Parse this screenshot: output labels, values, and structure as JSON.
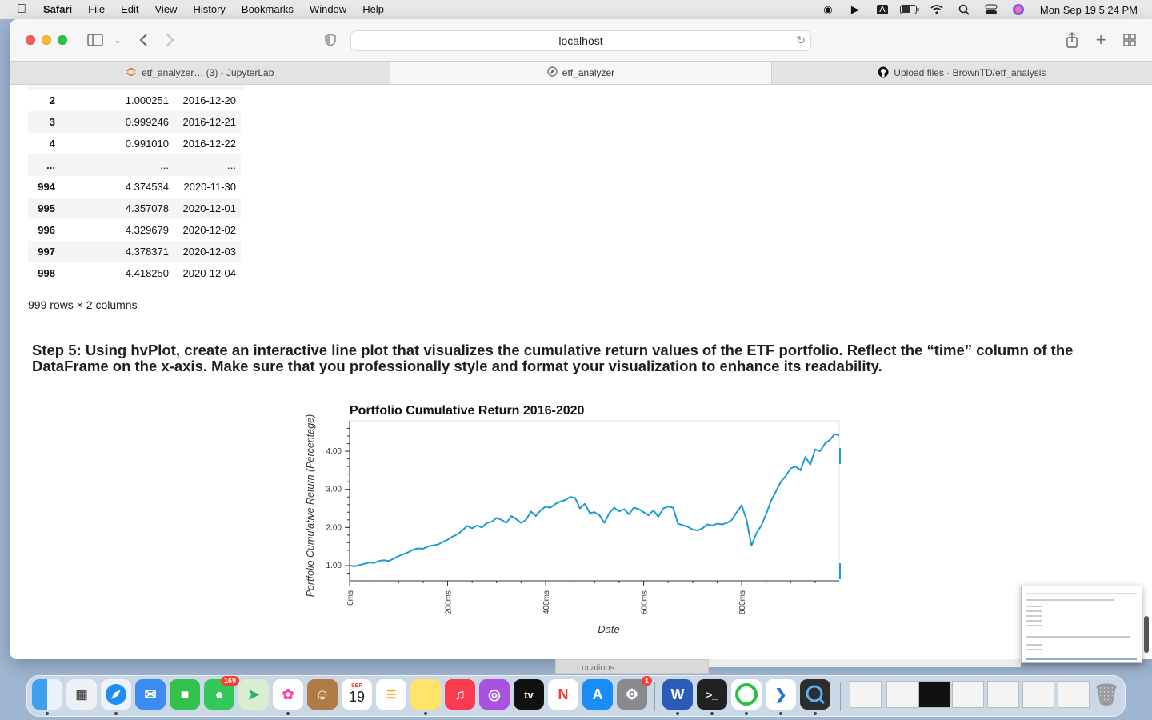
{
  "menubar": {
    "app_name": "Safari",
    "items": [
      "File",
      "Edit",
      "View",
      "History",
      "Bookmarks",
      "Window",
      "Help"
    ],
    "clock": "Mon Sep 19  5:24 PM"
  },
  "browser": {
    "address": "localhost",
    "tabs": [
      {
        "label": "etf_analyzer… (3) - JupyterLab",
        "icon": "jupyter-icon"
      },
      {
        "label": "etf_analyzer",
        "icon": "compass-icon"
      },
      {
        "label": "Upload files · BrownTD/etf_analysis",
        "icon": "github-icon"
      }
    ]
  },
  "dataframe": {
    "rows": [
      {
        "index": "2",
        "value": "1.000251",
        "date": "2016-12-20"
      },
      {
        "index": "3",
        "value": "0.999246",
        "date": "2016-12-21"
      },
      {
        "index": "4",
        "value": "0.991010",
        "date": "2016-12-22"
      },
      {
        "index": "...",
        "value": "...",
        "date": "..."
      },
      {
        "index": "994",
        "value": "4.374534",
        "date": "2020-11-30"
      },
      {
        "index": "995",
        "value": "4.357078",
        "date": "2020-12-01"
      },
      {
        "index": "996",
        "value": "4.329679",
        "date": "2020-12-02"
      },
      {
        "index": "997",
        "value": "4.378371",
        "date": "2020-12-03"
      },
      {
        "index": "998",
        "value": "4.418250",
        "date": "2020-12-04"
      }
    ],
    "shape": "999 rows × 2 columns"
  },
  "step5_text": "Step 5: Using hvPlot, create an interactive line plot that visualizes the cumulative return values of the ETF portfolio. Reflect the “time” column of the DataFrame on the x-axis. Make sure that you professionally style and format your visualization to enhance its readability.",
  "chart_data": {
    "type": "line",
    "title": "Portfolio Cumulative Return 2016-2020",
    "xlabel": "Date",
    "ylabel": "Portfolio Cumulative Return (Percentage)",
    "xlim": [
      0,
      999
    ],
    "ylim": [
      0.6,
      4.8
    ],
    "xticks": [
      "0ms",
      "200ms",
      "400ms",
      "600ms",
      "800ms"
    ],
    "xtick_values": [
      0,
      200,
      400,
      600,
      800
    ],
    "yticks": [
      "1.00",
      "2.00",
      "3.00",
      "4.00"
    ],
    "ytick_values": [
      1,
      2,
      3,
      4
    ],
    "line_color": "#1f9ad6",
    "series": [
      {
        "x": [
          0,
          10,
          20,
          30,
          40,
          50,
          60,
          70,
          80,
          90,
          100,
          110,
          120,
          130,
          140,
          150,
          160,
          170,
          180,
          190,
          200,
          210,
          220,
          230,
          240,
          250,
          260,
          270,
          280,
          290,
          300,
          310,
          320,
          330,
          340,
          350,
          360,
          370,
          380,
          390,
          400,
          410,
          420,
          430,
          440,
          450,
          460,
          470,
          480,
          490,
          500,
          510,
          520,
          530,
          540,
          550,
          560,
          570,
          580,
          590,
          600,
          610,
          620,
          630,
          640,
          650,
          660,
          670,
          680,
          690,
          700,
          710,
          720,
          730,
          740,
          750,
          760,
          770,
          780,
          790,
          800,
          810,
          820,
          830,
          840,
          850,
          860,
          870,
          880,
          890,
          900,
          910,
          920,
          930,
          940,
          950,
          960,
          970,
          980,
          990,
          998
        ],
        "y": [
          1.0,
          0.98,
          1.01,
          1.05,
          1.08,
          1.07,
          1.12,
          1.14,
          1.12,
          1.18,
          1.25,
          1.3,
          1.35,
          1.42,
          1.45,
          1.44,
          1.5,
          1.53,
          1.55,
          1.62,
          1.68,
          1.76,
          1.82,
          1.92,
          2.04,
          1.98,
          2.05,
          2.0,
          2.12,
          2.15,
          2.25,
          2.2,
          2.12,
          2.3,
          2.22,
          2.12,
          2.2,
          2.42,
          2.3,
          2.45,
          2.55,
          2.52,
          2.62,
          2.68,
          2.72,
          2.8,
          2.78,
          2.5,
          2.62,
          2.38,
          2.4,
          2.32,
          2.12,
          2.38,
          2.52,
          2.42,
          2.48,
          2.35,
          2.52,
          2.48,
          2.4,
          2.32,
          2.45,
          2.28,
          2.5,
          2.55,
          2.52,
          2.1,
          2.06,
          2.02,
          1.95,
          1.92,
          1.98,
          2.08,
          2.05,
          2.1,
          2.08,
          2.12,
          2.2,
          2.4,
          2.58,
          2.2,
          1.52,
          1.85,
          2.05,
          2.35,
          2.7,
          2.95,
          3.2,
          3.35,
          3.55,
          3.6,
          3.5,
          3.85,
          3.65,
          4.05,
          4.0,
          4.2,
          4.3,
          4.45,
          4.42
        ]
      }
    ]
  },
  "locations_label": "Locations",
  "dock_badges": {
    "messages": "169",
    "settings": "1"
  }
}
